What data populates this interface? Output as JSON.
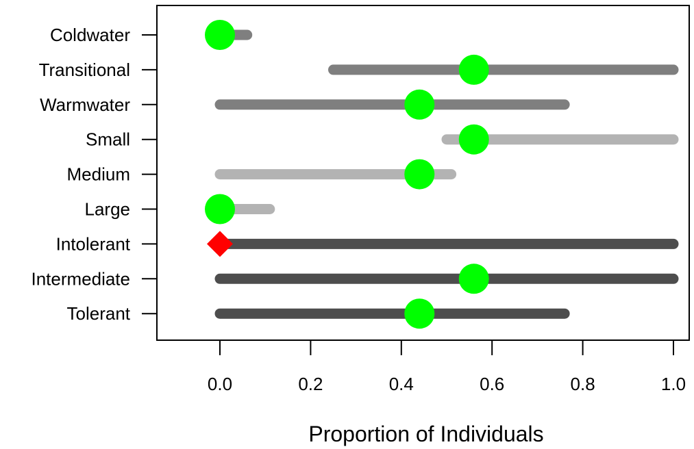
{
  "chart_data": {
    "type": "dot-range",
    "xlabel": "Proportion of Individuals",
    "ylabel": "",
    "title": "",
    "xlim": [
      -0.14,
      1.02
    ],
    "x_ticks": [
      0.0,
      0.2,
      0.4,
      0.6,
      0.8,
      1.0
    ],
    "x_tick_labels": [
      "0.0",
      "0.2",
      "0.4",
      "0.6",
      "0.8",
      "1.0"
    ],
    "grid": false,
    "colors": {
      "dark_gray": "#4d4d4d",
      "mid_gray": "#7f7f7f",
      "light_gray": "#b3b3b3",
      "point_green": "#00ff00",
      "point_red": "#ff0000"
    },
    "categories": [
      "Coldwater",
      "Transitional",
      "Warmwater",
      "Small",
      "Medium",
      "Large",
      "Intolerant",
      "Intermediate",
      "Tolerant"
    ],
    "rows": [
      {
        "label": "Coldwater",
        "range": [
          0.0,
          0.06
        ],
        "point": 0.0,
        "marker": "circle",
        "bar_color": "mid_gray",
        "point_color": "point_green"
      },
      {
        "label": "Transitional",
        "range": [
          0.25,
          1.0
        ],
        "point": 0.56,
        "marker": "circle",
        "bar_color": "mid_gray",
        "point_color": "point_green"
      },
      {
        "label": "Warmwater",
        "range": [
          0.0,
          0.76
        ],
        "point": 0.44,
        "marker": "circle",
        "bar_color": "mid_gray",
        "point_color": "point_green"
      },
      {
        "label": "Small",
        "range": [
          0.5,
          1.0
        ],
        "point": 0.56,
        "marker": "circle",
        "bar_color": "light_gray",
        "point_color": "point_green"
      },
      {
        "label": "Medium",
        "range": [
          0.0,
          0.51
        ],
        "point": 0.44,
        "marker": "circle",
        "bar_color": "light_gray",
        "point_color": "point_green"
      },
      {
        "label": "Large",
        "range": [
          0.0,
          0.11
        ],
        "point": 0.0,
        "marker": "circle",
        "bar_color": "light_gray",
        "point_color": "point_green"
      },
      {
        "label": "Intolerant",
        "range": [
          0.0,
          1.0
        ],
        "point": 0.0,
        "marker": "diamond",
        "bar_color": "dark_gray",
        "point_color": "point_red"
      },
      {
        "label": "Intermediate",
        "range": [
          0.0,
          1.0
        ],
        "point": 0.56,
        "marker": "circle",
        "bar_color": "dark_gray",
        "point_color": "point_green"
      },
      {
        "label": "Tolerant",
        "range": [
          0.0,
          0.76
        ],
        "point": 0.44,
        "marker": "circle",
        "bar_color": "dark_gray",
        "point_color": "point_green"
      }
    ]
  }
}
